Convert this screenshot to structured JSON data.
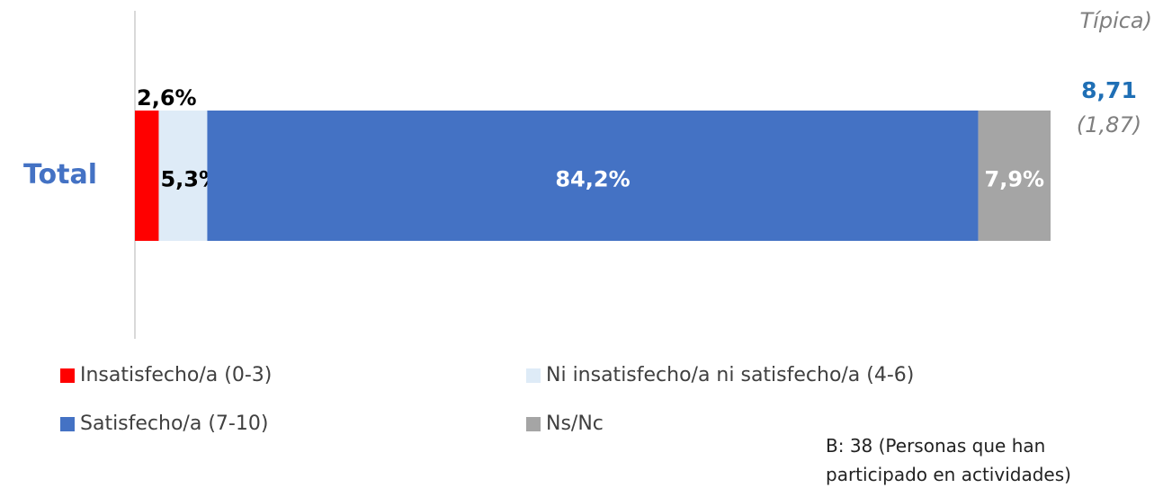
{
  "chart_data": {
    "type": "bar",
    "orientation": "horizontal",
    "stacked": true,
    "categories": [
      "Total"
    ],
    "series": [
      {
        "name": "Insatisfecho/a (0-3)",
        "color": "#ff0000",
        "label_color": "#000000",
        "values": [
          2.6
        ],
        "value_labels": [
          "2,6%"
        ]
      },
      {
        "name": "Ni insatisfecho/a ni satisfecho/a (4-6)",
        "color": "#deebf7",
        "label_color": "#000000",
        "values": [
          5.3
        ],
        "value_labels": [
          "5,3%"
        ]
      },
      {
        "name": "Satisfecho/a (7-10)",
        "color": "#4472c4",
        "label_color": "#ffffff",
        "values": [
          84.2
        ],
        "value_labels": [
          "84,2%"
        ]
      },
      {
        "name": "Ns/Nc",
        "color": "#a5a5a5",
        "label_color": "#ffffff",
        "values": [
          7.9
        ],
        "value_labels": [
          "7,9%"
        ]
      }
    ],
    "xlim": [
      0,
      100
    ],
    "header_fragment": "Típica)",
    "mean": "8,71",
    "sd": "(1,87)",
    "note": "B: 38 (Personas que han participado en actividades)"
  }
}
